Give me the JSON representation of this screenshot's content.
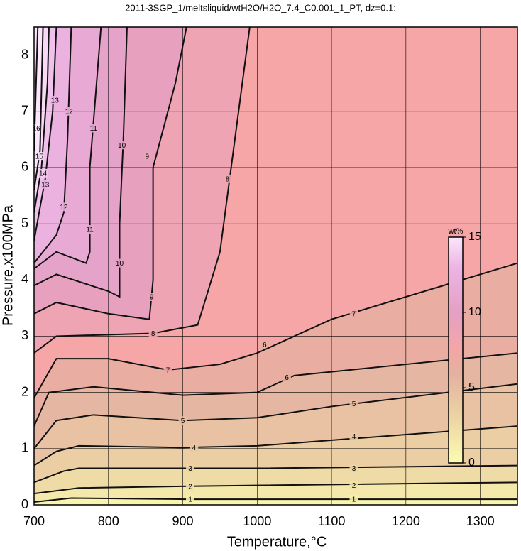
{
  "chart_data": {
    "type": "contour",
    "title": "2011-3SGP_1/meltsliquid/wtH2O/H2O_7.4_C0.001_1_PT, dz=0.1:",
    "xlabel": "Temperature,°C",
    "ylabel": "Pressure,x100MPa",
    "xlim": [
      700,
      1350
    ],
    "ylim": [
      0,
      8.5
    ],
    "xticks": [
      700,
      800,
      900,
      1000,
      1100,
      1200,
      1300
    ],
    "yticks": [
      0,
      1,
      2,
      3,
      4,
      5,
      6,
      7,
      8
    ],
    "grid": true,
    "background": "#f6a6a6",
    "colormap": {
      "values": [
        0,
        3,
        6,
        7.5,
        10,
        13,
        15
      ],
      "colors": [
        "#fcfcb0",
        "#ecd4a4",
        "#e4b0a0",
        "#f4a6a6",
        "#e4a0c4",
        "#ecb4e4",
        "#fce6fc"
      ]
    },
    "colorbar": {
      "label": "wt%",
      "lim": [
        0,
        15
      ],
      "ticks": [
        0,
        5,
        10,
        15
      ]
    },
    "contours": [
      {
        "level": 1,
        "x": [
          700,
          750,
          900,
          1350
        ],
        "y": [
          0.05,
          0.12,
          0.1,
          0.1
        ],
        "label_x": [
          910,
          1130
        ],
        "label_y": [
          0.1,
          0.1
        ]
      },
      {
        "level": 2,
        "x": [
          700,
          760,
          900,
          1350
        ],
        "y": [
          0.2,
          0.3,
          0.33,
          0.4
        ],
        "label_x": [
          910,
          1130
        ],
        "label_y": [
          0.33,
          0.35
        ]
      },
      {
        "level": 3,
        "x": [
          700,
          740,
          760,
          1000,
          1350
        ],
        "y": [
          0.4,
          0.6,
          0.65,
          0.65,
          0.7
        ],
        "label_x": [
          910,
          1130
        ],
        "label_y": [
          0.65,
          0.65
        ]
      },
      {
        "level": 4,
        "x": [
          700,
          730,
          760,
          900,
          1000,
          1350
        ],
        "y": [
          0.7,
          0.95,
          1.05,
          1.02,
          1.05,
          1.4
        ],
        "label_x": [
          915,
          1130
        ],
        "label_y": [
          1.02,
          1.22
        ]
      },
      {
        "level": 5,
        "x": [
          700,
          730,
          780,
          900,
          1000,
          1100,
          1350
        ],
        "y": [
          1.0,
          1.5,
          1.6,
          1.5,
          1.55,
          1.75,
          2.15
        ],
        "label_x": [
          900,
          1130
        ],
        "label_y": [
          1.5,
          1.8
        ]
      },
      {
        "level": 6,
        "x": [
          700,
          720,
          780,
          900,
          1000,
          1050,
          1200,
          1350
        ],
        "y": [
          1.4,
          2.0,
          2.1,
          1.95,
          2.0,
          2.3,
          2.5,
          2.7
        ],
        "label_x": [
          1040,
          1010
        ],
        "label_y": [
          2.27,
          2.85
        ]
      },
      {
        "level": 7,
        "x": [
          700,
          730,
          800,
          880,
          950,
          1000,
          1100,
          1350
        ],
        "y": [
          1.9,
          2.6,
          2.6,
          2.4,
          2.5,
          2.7,
          3.3,
          4.3
        ],
        "label_x": [
          880,
          1130
        ],
        "label_y": [
          2.4,
          3.4
        ]
      },
      {
        "level": 8,
        "x": [
          700,
          730,
          860,
          920,
          950,
          990
        ],
        "y": [
          2.7,
          3.0,
          3.05,
          3.2,
          4.5,
          8.5
        ],
        "label_x": [
          860,
          960
        ],
        "label_y": [
          3.05,
          5.8
        ]
      },
      {
        "level": 9,
        "x": [
          700,
          730,
          800,
          855,
          860,
          860,
          890,
          905
        ],
        "y": [
          3.4,
          3.6,
          3.4,
          3.3,
          4.0,
          6.0,
          7.5,
          8.5
        ],
        "label_x": [
          858,
          852
        ],
        "label_y": [
          3.7,
          6.2
        ]
      },
      {
        "level": 10,
        "x": [
          700,
          730,
          800,
          815,
          815,
          820,
          825
        ],
        "y": [
          3.9,
          4.1,
          3.8,
          3.7,
          5.0,
          6.5,
          8.5
        ],
        "label_x": [
          815,
          818
        ],
        "label_y": [
          4.3,
          6.4
        ]
      },
      {
        "level": 11,
        "x": [
          700,
          730,
          770,
          775,
          775,
          790
        ],
        "y": [
          4.2,
          4.5,
          4.3,
          4.5,
          6.0,
          8.5
        ],
        "label_x": [
          775,
          780
        ],
        "label_y": [
          4.9,
          6.7
        ]
      },
      {
        "level": 12,
        "x": [
          700,
          730,
          740,
          745,
          750
        ],
        "y": [
          4.3,
          4.8,
          5.2,
          6.5,
          8.5
        ],
        "label_x": [
          740,
          747
        ],
        "label_y": [
          5.3,
          7.0
        ]
      },
      {
        "level": 13,
        "x": [
          700,
          715,
          725,
          730
        ],
        "y": [
          4.7,
          5.8,
          7.0,
          8.5
        ],
        "label_x": [
          715,
          728
        ],
        "label_y": [
          5.7,
          7.2
        ]
      },
      {
        "level": 14,
        "x": [
          700,
          710,
          718,
          720
        ],
        "y": [
          5.2,
          6.0,
          7.5,
          8.5
        ],
        "label_x": [
          712
        ],
        "label_y": [
          5.9
        ]
      },
      {
        "level": 15,
        "x": [
          700,
          708,
          712
        ],
        "y": [
          5.6,
          6.3,
          8.5
        ],
        "label_x": [
          707
        ],
        "label_y": [
          6.2
        ]
      },
      {
        "level": 16,
        "x": [
          700,
          705
        ],
        "y": [
          6.3,
          8.5
        ],
        "label_x": [
          703
        ],
        "label_y": [
          6.7
        ]
      }
    ]
  }
}
